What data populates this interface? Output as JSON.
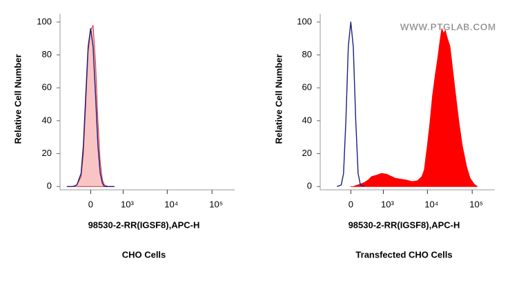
{
  "chart_data": [
    {
      "type": "area",
      "x_label": "98530-2-RR(IGSF8),APC-H",
      "y_label": "Relative Cell Number",
      "caption": "CHO Cells",
      "x": [
        -600,
        -400,
        -300,
        -200,
        -150,
        -100,
        -50,
        0,
        50,
        100,
        150,
        200,
        250,
        300,
        400,
        600
      ],
      "series": [
        {
          "color": "#d03030",
          "fill_color": "#f8c4c4",
          "fill": true,
          "values": [
            0,
            0,
            1,
            6,
            20,
            50,
            82,
            95,
            98,
            75,
            40,
            15,
            4,
            1,
            0,
            0
          ]
        },
        {
          "color": "#1c1c80",
          "fill": false,
          "values": [
            0,
            0,
            1,
            8,
            25,
            55,
            85,
            96,
            85,
            55,
            25,
            8,
            2,
            0,
            0,
            0
          ]
        }
      ],
      "x_scale": "biexponential",
      "xlim": [
        -900,
        320000
      ],
      "xticks": [
        0,
        {
          "value": 1000,
          "label": "10³"
        },
        {
          "value": 10000,
          "label": "10⁴"
        },
        {
          "value": 100000,
          "label": "10⁵"
        }
      ],
      "ylim": [
        -2,
        105
      ],
      "yticks": [
        0,
        20,
        40,
        60,
        80,
        100
      ]
    },
    {
      "type": "area",
      "x_label": "98530-2-RR(IGSF8),APC-H",
      "y_label": "Relative Cell Number",
      "caption": "Transfected CHO Cells",
      "watermark": "WWW.PTGLAB.COM",
      "x": [
        -300,
        -200,
        -150,
        -100,
        -50,
        0,
        50,
        100,
        150,
        200,
        300,
        400,
        500,
        700,
        900,
        1200,
        1900,
        3300,
        4500,
        6000,
        7500,
        8500,
        10000,
        11500,
        13000,
        15000,
        17000,
        19000,
        21000,
        23000,
        25000,
        28000,
        32000,
        37000,
        43000,
        50000,
        60000,
        75000,
        90000,
        110000,
        130000
      ],
      "series": [
        {
          "color": "#ff0000",
          "fill_color": "#ff0000",
          "fill": true,
          "values": [
            null,
            null,
            null,
            null,
            null,
            0,
            0,
            0.5,
            1,
            1.5,
            2.5,
            4,
            6,
            7,
            8,
            7.5,
            5,
            4,
            3,
            3.5,
            6,
            10,
            25,
            40,
            55,
            68,
            78,
            88,
            96,
            93,
            95,
            90,
            85,
            70,
            55,
            40,
            25,
            12,
            5,
            1.5,
            0
          ]
        },
        {
          "color": "#1c1c80",
          "fill": false,
          "values": [
            0,
            1,
            8,
            40,
            85,
            100,
            85,
            40,
            8,
            1,
            0,
            null,
            null,
            null,
            null,
            null,
            null,
            null,
            null,
            null,
            null,
            null,
            null,
            null,
            null,
            null,
            null,
            null,
            null,
            null,
            null,
            null,
            null,
            null,
            null,
            null,
            null,
            null,
            null,
            null,
            null
          ]
        }
      ],
      "x_scale": "biexponential",
      "xlim": [
        -900,
        320000
      ],
      "xticks": [
        0,
        {
          "value": 1000,
          "label": "10³"
        },
        {
          "value": 10000,
          "label": "10⁴"
        },
        {
          "value": 100000,
          "label": "10⁵"
        }
      ],
      "ylim": [
        -2,
        105
      ],
      "yticks": [
        0,
        20,
        40,
        60,
        80,
        100
      ]
    }
  ]
}
